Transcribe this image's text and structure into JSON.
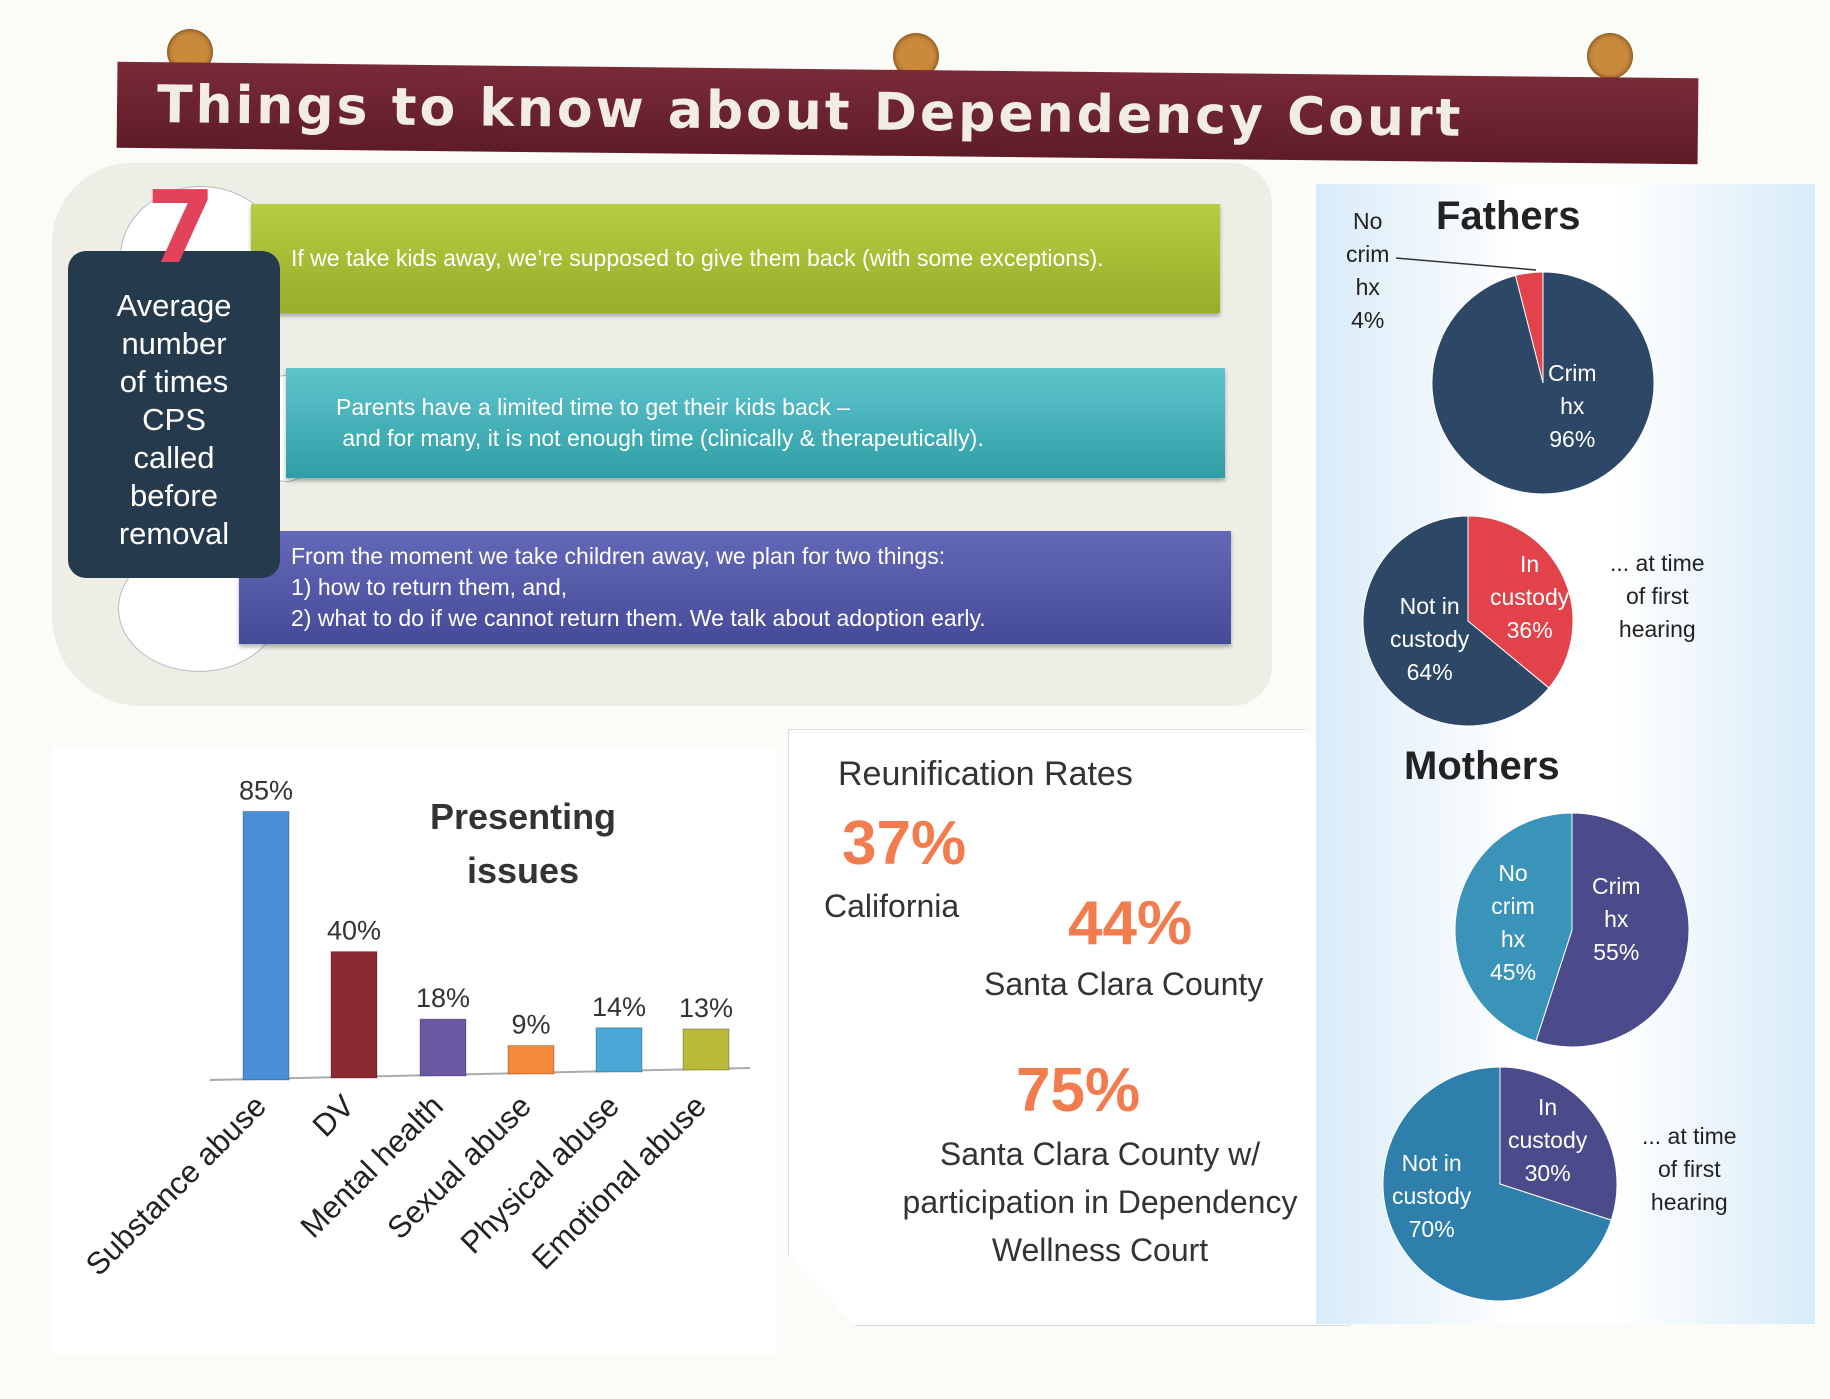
{
  "title": "Things to know about Dependency Court",
  "stat": {
    "number": "7",
    "label_lines": [
      "Average",
      "number",
      "of times",
      "CPS",
      "called",
      "before",
      "removal"
    ]
  },
  "points": [
    {
      "lines": [
        "If we take kids away, we’re supposed to give them back (with some exceptions)."
      ],
      "color": "#a9bf33"
    },
    {
      "lines": [
        "Parents have a limited time to get their kids back –",
        " and for many, it is not enough time (clinically & therapeutically)."
      ],
      "color": "#3eafb8"
    },
    {
      "lines": [
        "From the moment we take children away, we plan for two things:",
        "1) how to return them, and,",
        "2) what to do if we cannot return them.  We talk about adoption early."
      ],
      "color": "#4e55a6"
    }
  ],
  "reunification": {
    "title": "Reunification Rates",
    "items": [
      {
        "value": "37%",
        "label": "California"
      },
      {
        "value": "44%",
        "label": "Santa Clara County"
      },
      {
        "value": "75%",
        "label_lines": [
          "Santa Clara County w/",
          "participation in Dependency",
          "Wellness Court"
        ]
      }
    ]
  },
  "chart_data": [
    {
      "type": "bar",
      "title": "Presenting issues",
      "title_lines": [
        "Presenting",
        "issues"
      ],
      "categories": [
        "Substance abuse",
        "DV",
        "Mental health",
        "Sexual abuse",
        "Physical abuse",
        "Emotional abuse"
      ],
      "values": [
        85,
        40,
        18,
        9,
        14,
        13
      ],
      "labels": [
        "85%",
        "40%",
        "18%",
        "9%",
        "14%",
        "13%"
      ],
      "colors": [
        "#4a8fd6",
        "#8a2a32",
        "#6a58a4",
        "#f5883a",
        "#4aa8d6",
        "#b9b93a"
      ],
      "xlabel": "",
      "ylabel": "",
      "ylim": [
        0,
        100
      ]
    },
    {
      "type": "pie",
      "group": "Fathers",
      "title": "Fathers",
      "slices": [
        {
          "label_lines": [
            "No",
            "crim",
            "hx",
            "4%"
          ],
          "value": 4,
          "color": "#e2424a"
        },
        {
          "label_lines": [
            "Crim",
            "hx",
            "96%"
          ],
          "value": 96,
          "color": "#2d4766"
        }
      ]
    },
    {
      "type": "pie",
      "group": "Fathers",
      "note_lines": [
        "... at time",
        "of first",
        "hearing"
      ],
      "slices": [
        {
          "label_lines": [
            "In",
            "custody",
            "36%"
          ],
          "value": 36,
          "color": "#e2424a"
        },
        {
          "label_lines": [
            "Not in",
            "custody",
            "64%"
          ],
          "value": 64,
          "color": "#2d4766"
        }
      ]
    },
    {
      "type": "pie",
      "group": "Mothers",
      "title": "Mothers",
      "slices": [
        {
          "label_lines": [
            "Crim",
            "hx",
            "55%"
          ],
          "value": 55,
          "color": "#4b4a8a"
        },
        {
          "label_lines": [
            "No",
            "crim",
            "hx",
            "45%"
          ],
          "value": 45,
          "color": "#3a93b8"
        }
      ]
    },
    {
      "type": "pie",
      "group": "Mothers",
      "note_lines": [
        "... at time",
        "of first",
        "hearing"
      ],
      "slices": [
        {
          "label_lines": [
            "In",
            "custody",
            "30%"
          ],
          "value": 30,
          "color": "#4b4a8a"
        },
        {
          "label_lines": [
            "Not in",
            "custody",
            "70%"
          ],
          "value": 70,
          "color": "#2e7fac"
        }
      ]
    }
  ]
}
